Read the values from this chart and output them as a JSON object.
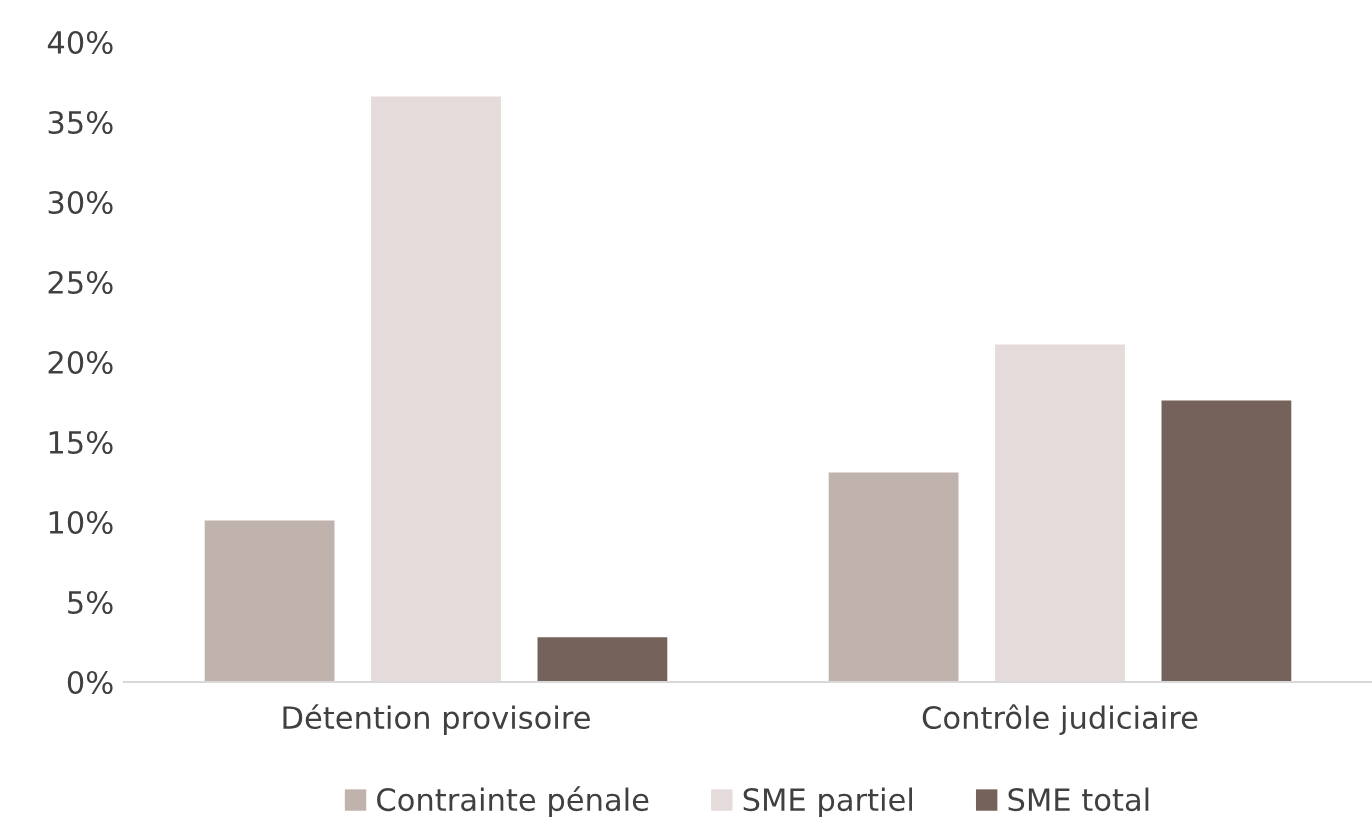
{
  "chart_data": {
    "type": "bar",
    "categories": [
      "Détention provisoire",
      "Contrôle judiciaire"
    ],
    "series": [
      {
        "name": "Contrainte pénale",
        "color": "#c0b2ad",
        "values": [
          10.1,
          13.1
        ]
      },
      {
        "name": "SME partiel",
        "color": "#e4dbda",
        "values": [
          36.6,
          21.1
        ]
      },
      {
        "name": "SME total",
        "color": "#75635b",
        "values": [
          2.8,
          17.6
        ]
      }
    ],
    "ylim": [
      0,
      40
    ],
    "yticks": [
      {
        "value": 0,
        "label": "0%"
      },
      {
        "value": 5,
        "label": "5%"
      },
      {
        "value": 10,
        "label": "10%"
      },
      {
        "value": 15,
        "label": "15%"
      },
      {
        "value": 20,
        "label": "20%"
      },
      {
        "value": 25,
        "label": "25%"
      },
      {
        "value": 30,
        "label": "30%"
      },
      {
        "value": 35,
        "label": "35%"
      },
      {
        "value": 40,
        "label": "40%"
      }
    ],
    "grid": false,
    "legend": "bottom"
  }
}
